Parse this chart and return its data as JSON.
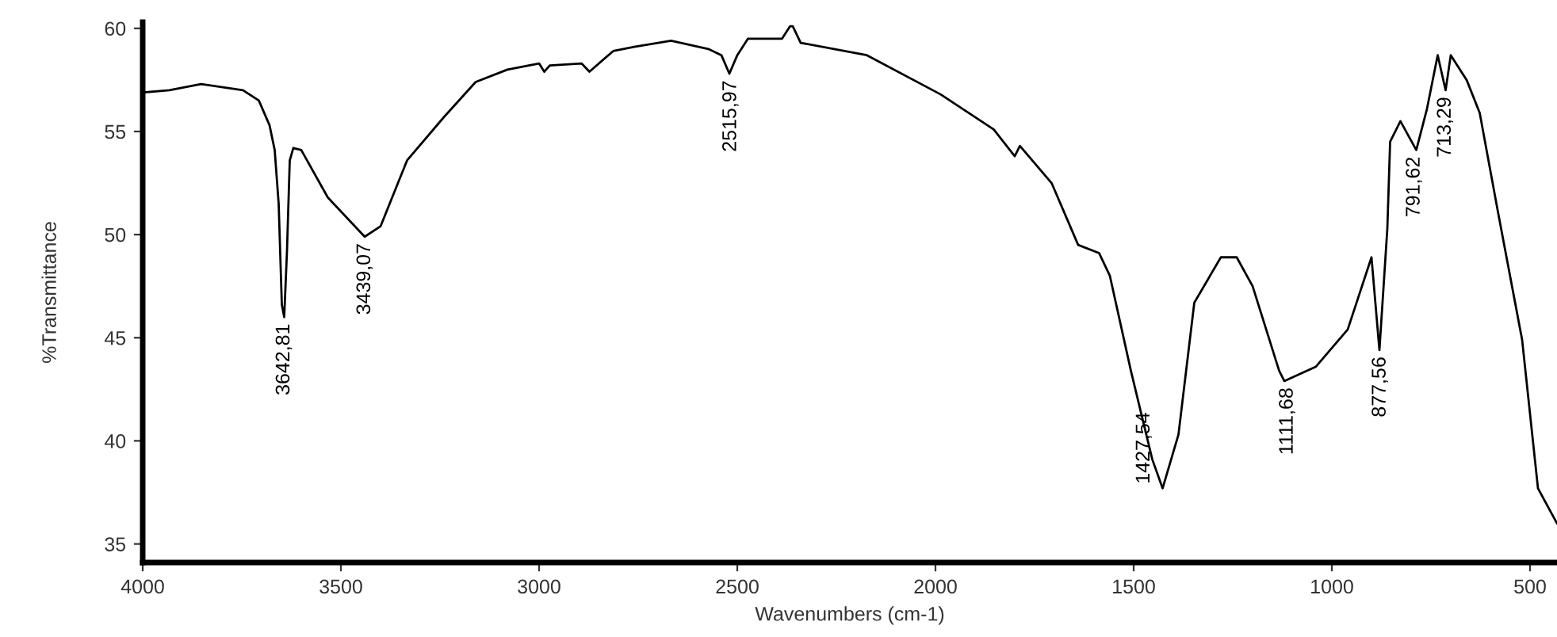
{
  "chart_data": {
    "type": "line",
    "xlabel": "Wavenumbers (cm-1)",
    "ylabel": "%Transmittance",
    "xlim": [
      4000,
      432
    ],
    "ylim": [
      34.1,
      60.3
    ],
    "xticks": [
      4000,
      3500,
      3000,
      2500,
      2000,
      1500,
      1000,
      500
    ],
    "yticks": [
      35,
      40,
      45,
      50,
      55,
      60
    ],
    "marker": "none",
    "line_style": "solid",
    "series": [
      {
        "color": "#000000",
        "x": [
          3993,
          3933,
          3853,
          3747,
          3707,
          3680,
          3667,
          3657,
          3649,
          3643,
          3636,
          3629,
          3620,
          3600,
          3533,
          3440,
          3400,
          3333,
          3240,
          3160,
          3080,
          3000,
          2987,
          2973,
          2893,
          2873,
          2813,
          2760,
          2667,
          2573,
          2540,
          2520,
          2500,
          2473,
          2387,
          2367,
          2360,
          2340,
          2173,
          1987,
          1853,
          1800,
          1787,
          1707,
          1640,
          1587,
          1560,
          1507,
          1453,
          1427,
          1387,
          1347,
          1280,
          1240,
          1200,
          1133,
          1120,
          1040,
          960,
          900,
          880,
          860,
          853,
          827,
          787,
          760,
          733,
          713,
          700,
          660,
          627,
          580,
          520,
          480,
          432
        ],
        "values": [
          56.9,
          57.0,
          57.3,
          57.0,
          56.5,
          55.3,
          54.1,
          51.5,
          46.6,
          46.0,
          49.2,
          53.6,
          54.2,
          54.1,
          51.8,
          49.9,
          50.4,
          53.6,
          55.7,
          57.4,
          58.0,
          58.3,
          57.9,
          58.2,
          58.3,
          57.9,
          58.9,
          59.1,
          59.4,
          59.0,
          58.7,
          57.8,
          58.7,
          59.5,
          59.5,
          60.1,
          60.1,
          59.3,
          58.7,
          56.8,
          55.1,
          53.8,
          54.3,
          52.5,
          49.5,
          49.1,
          48.0,
          43.4,
          39.1,
          37.7,
          40.3,
          46.7,
          48.9,
          48.9,
          47.5,
          43.4,
          42.9,
          43.6,
          45.4,
          48.9,
          44.4,
          50.3,
          54.5,
          55.5,
          54.1,
          56.1,
          58.7,
          57.0,
          58.7,
          57.5,
          55.9,
          51.0,
          44.9,
          37.7,
          36.0
        ]
      }
    ],
    "annotations": [
      {
        "text": "3642,81",
        "x": 3642.81,
        "y": 46.0
      },
      {
        "text": "3439,07",
        "x": 3439.07,
        "y": 49.9
      },
      {
        "text": "2515,97",
        "x": 2515.97,
        "y": 57.8
      },
      {
        "text": "1427,54",
        "x": 1427.54,
        "y": 37.7
      },
      {
        "text": "1111,68",
        "x": 1111.68,
        "y": 42.9
      },
      {
        "text": "877,56",
        "x": 877.56,
        "y": 44.4
      },
      {
        "text": "791,62",
        "x": 791.62,
        "y": 54.1
      },
      {
        "text": "713,29",
        "x": 713.29,
        "y": 57.0
      }
    ]
  }
}
